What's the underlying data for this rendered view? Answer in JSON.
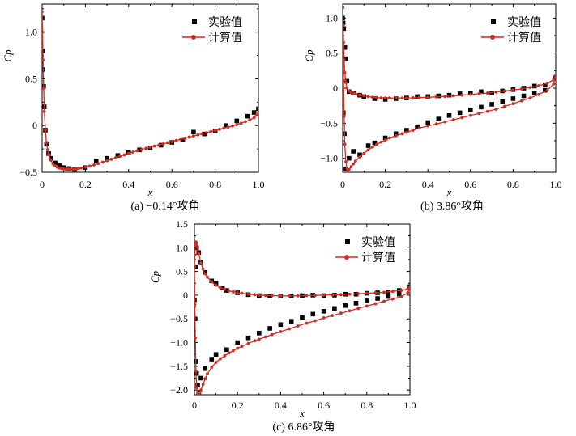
{
  "chart_data": [
    {
      "type": "scatter",
      "xlabel": "x",
      "ylabel": "Cp",
      "caption": "(a) −0.14°攻角",
      "xlim": [
        0,
        1.0
      ],
      "ylim": [
        -0.5,
        1.3
      ],
      "xticks": [
        "0",
        "0.2",
        "0.4",
        "0.6",
        "0.8",
        "1.0"
      ],
      "yticks": [
        "−0.5",
        "0",
        "0.5",
        "1.0"
      ],
      "legend_position": "top-right",
      "series": [
        {
          "name": "实验值",
          "marker": "square",
          "color": "#000000",
          "x": [
            0.0,
            0.002,
            0.004,
            0.007,
            0.01,
            0.015,
            0.02,
            0.03,
            0.04,
            0.06,
            0.08,
            0.1,
            0.125,
            0.15,
            0.2,
            0.25,
            0.3,
            0.35,
            0.4,
            0.45,
            0.5,
            0.55,
            0.6,
            0.65,
            0.7,
            0.75,
            0.8,
            0.85,
            0.9,
            0.95,
            0.98,
            1.0
          ],
          "y": [
            1.15,
            0.8,
            0.6,
            0.42,
            0.2,
            -0.05,
            -0.2,
            -0.3,
            -0.35,
            -0.4,
            -0.43,
            -0.45,
            -0.46,
            -0.47,
            -0.45,
            -0.38,
            -0.35,
            -0.32,
            -0.29,
            -0.26,
            -0.24,
            -0.21,
            -0.18,
            -0.15,
            -0.07,
            -0.09,
            -0.06,
            0.0,
            0.05,
            0.1,
            0.14,
            0.18
          ]
        },
        {
          "name": "计算值",
          "marker": "circle-line",
          "color": "#d42a1f",
          "x": [
            0.0,
            0.002,
            0.004,
            0.007,
            0.01,
            0.015,
            0.02,
            0.025,
            0.03,
            0.04,
            0.05,
            0.06,
            0.07,
            0.08,
            0.09,
            0.1,
            0.11,
            0.12,
            0.13,
            0.14,
            0.15,
            0.16,
            0.17,
            0.18,
            0.2,
            0.22,
            0.24,
            0.26,
            0.28,
            0.3,
            0.32,
            0.34,
            0.36,
            0.38,
            0.4,
            0.42,
            0.44,
            0.46,
            0.48,
            0.5,
            0.52,
            0.54,
            0.56,
            0.58,
            0.6,
            0.62,
            0.64,
            0.66,
            0.68,
            0.7,
            0.72,
            0.74,
            0.76,
            0.78,
            0.8,
            0.82,
            0.84,
            0.86,
            0.88,
            0.9,
            0.92,
            0.94,
            0.96,
            0.98,
            0.99,
            1.0
          ],
          "y": [
            1.22,
            1.0,
            0.7,
            0.4,
            0.15,
            -0.05,
            -0.18,
            -0.26,
            -0.31,
            -0.37,
            -0.41,
            -0.43,
            -0.445,
            -0.455,
            -0.46,
            -0.465,
            -0.467,
            -0.468,
            -0.468,
            -0.467,
            -0.465,
            -0.462,
            -0.458,
            -0.454,
            -0.445,
            -0.434,
            -0.421,
            -0.407,
            -0.392,
            -0.376,
            -0.36,
            -0.344,
            -0.328,
            -0.313,
            -0.298,
            -0.284,
            -0.27,
            -0.257,
            -0.244,
            -0.232,
            -0.22,
            -0.208,
            -0.196,
            -0.184,
            -0.172,
            -0.16,
            -0.148,
            -0.136,
            -0.124,
            -0.112,
            -0.1,
            -0.088,
            -0.076,
            -0.064,
            -0.052,
            -0.04,
            -0.028,
            -0.016,
            -0.003,
            0.01,
            0.025,
            0.042,
            0.06,
            0.085,
            0.11,
            0.13
          ]
        }
      ]
    },
    {
      "type": "scatter",
      "xlabel": "x",
      "ylabel": "Cp",
      "caption": "(b) 3.86°攻角",
      "xlim": [
        0,
        1.0
      ],
      "ylim": [
        -1.2,
        1.2
      ],
      "xticks": [
        "0",
        "0.2",
        "0.4",
        "0.6",
        "0.8",
        "1.0"
      ],
      "yticks": [
        "−1.0",
        "−0.5",
        "0",
        "0.5",
        "1.0"
      ],
      "legend_position": "top-right",
      "series": [
        {
          "name": "实验值",
          "marker": "square",
          "color": "#000000",
          "x": [
            0.0,
            0.002,
            0.005,
            0.01,
            0.015,
            0.02,
            0.03,
            0.05,
            0.08,
            0.1,
            0.15,
            0.2,
            0.25,
            0.3,
            0.35,
            0.4,
            0.45,
            0.5,
            0.55,
            0.6,
            0.65,
            0.7,
            0.75,
            0.8,
            0.85,
            0.9,
            0.95,
            1.0,
            0.003,
            0.008,
            0.015,
            0.03,
            0.05,
            0.08,
            0.12,
            0.15,
            0.2,
            0.25,
            0.3,
            0.35,
            0.4,
            0.45,
            0.5,
            0.55,
            0.6,
            0.65,
            0.7,
            0.75,
            0.8,
            0.85,
            0.9,
            0.95
          ],
          "y": [
            1.0,
            0.93,
            0.85,
            0.58,
            0.42,
            0.1,
            -0.05,
            -0.07,
            -0.1,
            -0.12,
            -0.15,
            -0.16,
            -0.15,
            -0.14,
            -0.12,
            -0.12,
            -0.11,
            -0.1,
            -0.08,
            -0.07,
            -0.05,
            -0.07,
            -0.04,
            -0.02,
            0.0,
            0.03,
            0.05,
            0.15,
            -0.35,
            -0.65,
            -1.15,
            -1.0,
            -0.9,
            -0.95,
            -0.82,
            -0.78,
            -0.71,
            -0.65,
            -0.6,
            -0.55,
            -0.49,
            -0.44,
            -0.39,
            -0.35,
            -0.31,
            -0.27,
            -0.23,
            -0.19,
            -0.15,
            -0.11,
            -0.07,
            -0.03
          ]
        },
        {
          "name": "计算值",
          "marker": "circle-line",
          "color": "#d42a1f",
          "x": [
            0.0,
            0.002,
            0.004,
            0.007,
            0.01,
            0.015,
            0.02,
            0.03,
            0.04,
            0.05,
            0.06,
            0.08,
            0.1,
            0.12,
            0.14,
            0.16,
            0.18,
            0.2,
            0.22,
            0.25,
            0.28,
            0.3,
            0.33,
            0.36,
            0.4,
            0.44,
            0.48,
            0.52,
            0.56,
            0.6,
            0.64,
            0.68,
            0.72,
            0.76,
            0.8,
            0.84,
            0.88,
            0.92,
            0.96,
            0.99,
            1.0,
            0.0,
            0.002,
            0.004,
            0.007,
            0.01,
            0.015,
            0.02,
            0.025,
            0.03,
            0.04,
            0.05,
            0.06,
            0.08,
            0.1,
            0.12,
            0.14,
            0.16,
            0.18,
            0.2,
            0.22,
            0.25,
            0.28,
            0.3,
            0.33,
            0.36,
            0.4,
            0.44,
            0.48,
            0.52,
            0.56,
            0.6,
            0.64,
            0.68,
            0.72,
            0.76,
            0.8,
            0.84,
            0.88,
            0.92,
            0.96,
            0.99,
            1.0
          ],
          "y": [
            1.15,
            0.9,
            0.65,
            0.4,
            0.22,
            0.08,
            0.0,
            -0.04,
            -0.06,
            -0.07,
            -0.08,
            -0.1,
            -0.11,
            -0.12,
            -0.13,
            -0.135,
            -0.14,
            -0.14,
            -0.14,
            -0.14,
            -0.14,
            -0.14,
            -0.138,
            -0.135,
            -0.13,
            -0.125,
            -0.118,
            -0.11,
            -0.1,
            -0.09,
            -0.08,
            -0.07,
            -0.055,
            -0.04,
            -0.025,
            -0.01,
            0.01,
            0.035,
            0.07,
            0.12,
            0.18,
            1.15,
            0.6,
            0.1,
            -0.4,
            -0.8,
            -1.05,
            -1.15,
            -1.17,
            -1.16,
            -1.12,
            -1.08,
            -1.04,
            -0.98,
            -0.93,
            -0.88,
            -0.84,
            -0.8,
            -0.77,
            -0.74,
            -0.71,
            -0.68,
            -0.65,
            -0.63,
            -0.6,
            -0.57,
            -0.54,
            -0.51,
            -0.48,
            -0.45,
            -0.42,
            -0.39,
            -0.36,
            -0.33,
            -0.3,
            -0.26,
            -0.22,
            -0.18,
            -0.14,
            -0.09,
            -0.03,
            0.06,
            0.18
          ]
        }
      ]
    },
    {
      "type": "scatter",
      "xlabel": "x",
      "ylabel": "Cp",
      "caption": "(c) 6.86°攻角",
      "xlim": [
        0,
        1.0
      ],
      "ylim": [
        -2.1,
        1.5
      ],
      "xticks": [
        "0",
        "0.2",
        "0.4",
        "0.6",
        "0.8",
        "1.0"
      ],
      "yticks": [
        "−2.0",
        "−1.5",
        "−1.0",
        "−0.5",
        "0",
        "0.5",
        "1.0",
        "1.5"
      ],
      "legend_position": "top-right",
      "series": [
        {
          "name": "实验值",
          "marker": "square",
          "color": "#000000",
          "x": [
            0.0,
            0.005,
            0.01,
            0.02,
            0.03,
            0.05,
            0.08,
            0.1,
            0.13,
            0.15,
            0.2,
            0.25,
            0.3,
            0.35,
            0.4,
            0.45,
            0.5,
            0.55,
            0.6,
            0.65,
            0.7,
            0.75,
            0.8,
            0.85,
            0.9,
            0.95,
            1.0,
            0.003,
            0.006,
            0.01,
            0.015,
            0.02,
            0.03,
            0.05,
            0.08,
            0.1,
            0.15,
            0.2,
            0.25,
            0.3,
            0.35,
            0.4,
            0.45,
            0.5,
            0.55,
            0.6,
            0.65,
            0.7,
            0.75,
            0.8,
            0.85,
            0.9,
            0.95
          ],
          "y": [
            -0.1,
            0.6,
            1.0,
            0.9,
            0.7,
            0.48,
            0.3,
            0.25,
            0.15,
            0.1,
            0.05,
            0.01,
            -0.01,
            -0.02,
            -0.02,
            -0.02,
            -0.01,
            0.0,
            -0.01,
            0.0,
            0.02,
            0.02,
            0.04,
            0.05,
            0.07,
            0.1,
            0.18,
            -0.5,
            -1.4,
            -1.65,
            -1.9,
            -2.05,
            -1.75,
            -1.55,
            -1.35,
            -1.25,
            -1.15,
            -1.0,
            -0.9,
            -0.8,
            -0.7,
            -0.62,
            -0.55,
            -0.47,
            -0.4,
            -0.34,
            -0.28,
            -0.22,
            -0.17,
            -0.12,
            -0.07,
            -0.03,
            0.02
          ]
        },
        {
          "name": "计算值",
          "marker": "circle-line",
          "color": "#d42a1f",
          "x": [
            0.0,
            0.002,
            0.004,
            0.007,
            0.01,
            0.015,
            0.02,
            0.03,
            0.04,
            0.05,
            0.06,
            0.08,
            0.1,
            0.12,
            0.14,
            0.16,
            0.18,
            0.2,
            0.22,
            0.25,
            0.28,
            0.3,
            0.33,
            0.36,
            0.4,
            0.44,
            0.48,
            0.52,
            0.56,
            0.6,
            0.64,
            0.68,
            0.72,
            0.76,
            0.8,
            0.84,
            0.88,
            0.92,
            0.96,
            0.99,
            1.0,
            0.0,
            0.002,
            0.004,
            0.007,
            0.01,
            0.015,
            0.02,
            0.025,
            0.03,
            0.04,
            0.05,
            0.06,
            0.08,
            0.1,
            0.12,
            0.14,
            0.16,
            0.18,
            0.2,
            0.22,
            0.25,
            0.28,
            0.3,
            0.33,
            0.36,
            0.4,
            0.44,
            0.48,
            0.52,
            0.56,
            0.6,
            0.64,
            0.68,
            0.72,
            0.76,
            0.8,
            0.84,
            0.88,
            0.92,
            0.96,
            0.99,
            1.0
          ],
          "y": [
            0.6,
            0.85,
            1.05,
            1.12,
            1.1,
            1.0,
            0.88,
            0.68,
            0.55,
            0.45,
            0.38,
            0.28,
            0.21,
            0.16,
            0.12,
            0.09,
            0.07,
            0.05,
            0.04,
            0.02,
            0.01,
            0.0,
            -0.005,
            -0.01,
            -0.015,
            -0.015,
            -0.015,
            -0.01,
            -0.005,
            0.0,
            0.005,
            0.01,
            0.02,
            0.03,
            0.04,
            0.05,
            0.06,
            0.08,
            0.1,
            0.13,
            0.18,
            0.6,
            -0.2,
            -0.9,
            -1.6,
            -1.95,
            -2.08,
            -2.1,
            -2.06,
            -2.0,
            -1.88,
            -1.76,
            -1.66,
            -1.52,
            -1.42,
            -1.34,
            -1.28,
            -1.22,
            -1.17,
            -1.12,
            -1.08,
            -1.02,
            -0.96,
            -0.93,
            -0.88,
            -0.83,
            -0.77,
            -0.71,
            -0.65,
            -0.59,
            -0.54,
            -0.48,
            -0.43,
            -0.38,
            -0.33,
            -0.28,
            -0.23,
            -0.18,
            -0.13,
            -0.08,
            -0.03,
            0.05,
            0.16
          ]
        }
      ]
    }
  ]
}
